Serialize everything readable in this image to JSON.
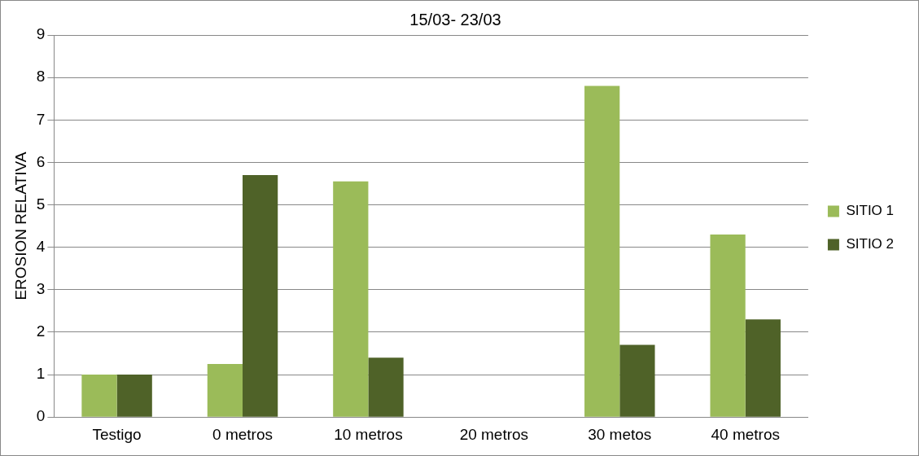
{
  "chart_data": {
    "type": "bar",
    "title": "15/03- 23/03",
    "ylabel": "EROSION RELATIVA",
    "categories": [
      "Testigo",
      "0 metros",
      "10 metros",
      "20 metros",
      "30 metos",
      "40 metros"
    ],
    "series": [
      {
        "name": "SITIO 1",
        "color": "#9bbb59",
        "values": [
          1,
          1.25,
          5.55,
          0,
          7.8,
          4.3
        ]
      },
      {
        "name": "SITIO 2",
        "color": "#4f6228",
        "values": [
          1,
          5.7,
          1.4,
          0,
          1.7,
          2.3
        ]
      }
    ],
    "ylim": [
      0,
      9
    ],
    "yticks": [
      0,
      1,
      2,
      3,
      4,
      5,
      6,
      7,
      8,
      9
    ],
    "grid": "y",
    "legend": "right"
  }
}
